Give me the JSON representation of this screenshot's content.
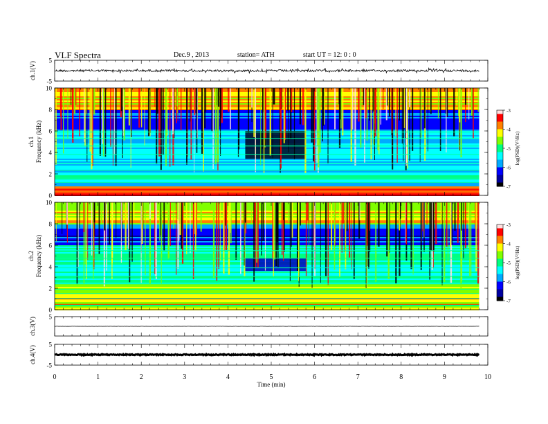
{
  "header": {
    "title": "VLF Spectra",
    "date": "Dec.9 , 2013",
    "station": "station= ATH",
    "start": "start UT = 12: 0 : 0"
  },
  "chart_data": {
    "type": "heatmap",
    "xlabel": "Time (min)",
    "xlim": [
      0,
      10
    ],
    "xticks": [
      "0",
      "1",
      "2",
      "3",
      "4",
      "5",
      "6",
      "7",
      "8",
      "9",
      "10"
    ],
    "data_end_min": 9.8,
    "panels": [
      {
        "id": "ch1-waveform",
        "type": "line",
        "ylabel": "ch.1(V)",
        "ylim": [
          -5,
          5
        ],
        "yticks": [
          "5",
          "-5"
        ],
        "baseline": 0,
        "amplitude": 0.5,
        "color": "#000000"
      },
      {
        "id": "ch1-spectrogram",
        "type": "heatmap",
        "ylabel_top": "ch.1",
        "ylabel": "Frequency (kHz)",
        "ylim": [
          0,
          10
        ],
        "yticks": [
          "0",
          "2",
          "4",
          "6",
          "8",
          "10"
        ],
        "colorbar": {
          "label": "log(PSD)(V²/Hz)",
          "range": [
            -7,
            -3
          ],
          "ticks": [
            "-3",
            "-4",
            "-5",
            "-6",
            "-7"
          ]
        }
      },
      {
        "id": "ch2-spectrogram",
        "type": "heatmap",
        "ylabel_top": "ch.2",
        "ylabel": "Frequency (kHz)",
        "ylim": [
          0,
          10
        ],
        "yticks": [
          "0",
          "2",
          "4",
          "6",
          "8",
          "10"
        ],
        "colorbar": {
          "label": "log(PSD)(V²/Hz)",
          "range": [
            -7,
            -3
          ],
          "ticks": [
            "-3",
            "-4",
            "-5",
            "-6",
            "-7"
          ]
        }
      },
      {
        "id": "ch3-waveform",
        "type": "line",
        "ylabel": "ch.3(V)",
        "ylim": [
          -5,
          5
        ],
        "yticks": [
          "5"
        ],
        "baseline": 0,
        "amplitude": 0.05,
        "color": "#000000"
      },
      {
        "id": "ch4-waveform",
        "type": "line",
        "ylabel": "ch.4(V)",
        "ylim": [
          -5,
          5
        ],
        "yticks": [
          "5",
          "-5"
        ],
        "baseline": 0,
        "amplitude": 0.25,
        "color": "#000000"
      }
    ]
  },
  "colors": {
    "colormap": [
      "#000000",
      "#0000a0",
      "#0000ff",
      "#00aaff",
      "#00ffff",
      "#00ff80",
      "#80ff00",
      "#ffff00",
      "#ff8000",
      "#ff0000",
      "#ffe0e0"
    ],
    "axis": "#000000"
  }
}
